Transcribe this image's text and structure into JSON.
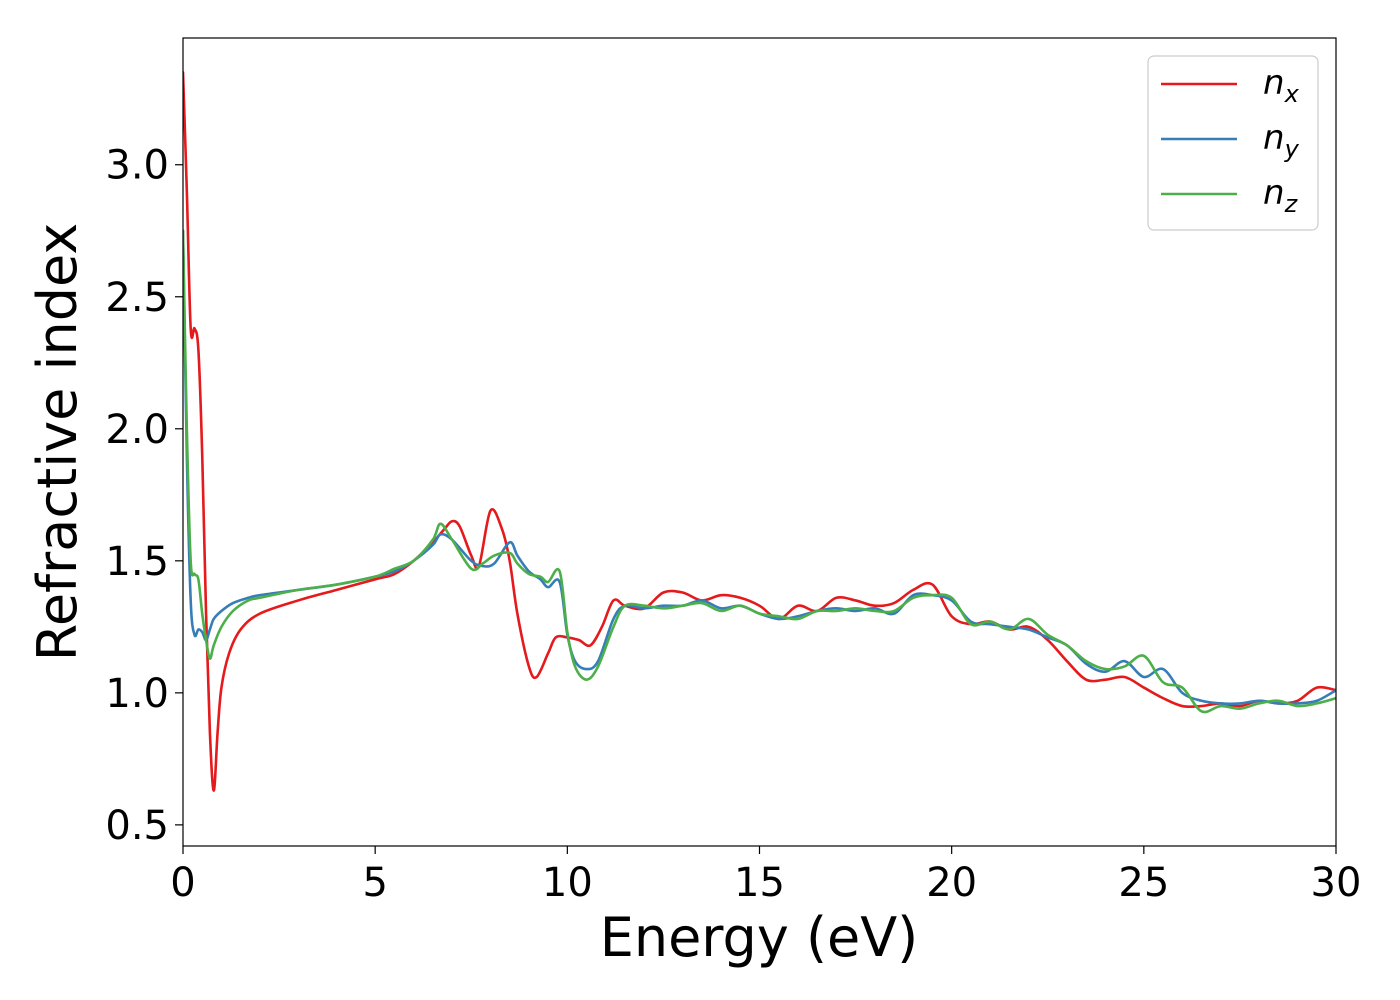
{
  "chart_data": {
    "type": "line",
    "title": "",
    "xlabel": "Energy (eV)",
    "ylabel": "Refractive index",
    "xlim": [
      0,
      30
    ],
    "ylim": [
      0.42,
      3.48
    ],
    "xticks": [
      0,
      5,
      10,
      15,
      20,
      25,
      30
    ],
    "xtick_labels": [
      "0",
      "5",
      "10",
      "15",
      "20",
      "25",
      "30"
    ],
    "yticks": [
      0.5,
      1.0,
      1.5,
      2.0,
      2.5,
      3.0
    ],
    "ytick_labels": [
      "0.5",
      "1.0",
      "1.5",
      "2.0",
      "2.5",
      "3.0"
    ],
    "grid": false,
    "legend_position": "top-right",
    "series": [
      {
        "name": "n_x",
        "label_base": "n",
        "label_sub": "x",
        "color": "#e41a1c",
        "x": [
          0,
          0.1,
          0.2,
          0.3,
          0.4,
          0.5,
          0.6,
          0.7,
          0.8,
          0.9,
          1.0,
          1.2,
          1.5,
          2,
          3,
          4,
          5,
          5.5,
          6,
          6.5,
          6.8,
          7.0,
          7.2,
          7.5,
          7.7,
          8.0,
          8.3,
          8.5,
          8.7,
          9.0,
          9.2,
          9.5,
          9.7,
          10.0,
          10.3,
          10.6,
          10.9,
          11.2,
          11.5,
          12,
          12.5,
          13,
          13.5,
          14,
          14.5,
          15,
          15.5,
          16,
          16.5,
          17,
          17.5,
          18,
          18.5,
          19,
          19.5,
          20,
          20.5,
          21,
          21.5,
          22,
          22.5,
          23,
          23.5,
          24,
          24.5,
          25,
          25.5,
          26,
          26.5,
          27,
          27.5,
          28,
          28.5,
          29,
          29.5,
          30
        ],
        "y": [
          3.35,
          2.9,
          2.38,
          2.38,
          2.3,
          1.9,
          1.3,
          0.85,
          0.63,
          0.85,
          1.02,
          1.15,
          1.24,
          1.3,
          1.35,
          1.39,
          1.43,
          1.45,
          1.5,
          1.57,
          1.62,
          1.65,
          1.63,
          1.52,
          1.48,
          1.69,
          1.62,
          1.5,
          1.3,
          1.1,
          1.06,
          1.15,
          1.21,
          1.21,
          1.2,
          1.18,
          1.25,
          1.35,
          1.33,
          1.32,
          1.38,
          1.38,
          1.35,
          1.37,
          1.36,
          1.33,
          1.28,
          1.33,
          1.31,
          1.36,
          1.35,
          1.33,
          1.34,
          1.39,
          1.41,
          1.29,
          1.26,
          1.27,
          1.24,
          1.25,
          1.2,
          1.12,
          1.05,
          1.05,
          1.06,
          1.02,
          0.98,
          0.95,
          0.95,
          0.96,
          0.95,
          0.97,
          0.96,
          0.97,
          1.02,
          1.01
        ]
      },
      {
        "name": "n_y",
        "label_base": "n",
        "label_sub": "y",
        "color": "#377eb8",
        "x": [
          0,
          0.1,
          0.2,
          0.3,
          0.4,
          0.5,
          0.6,
          0.7,
          0.8,
          1.0,
          1.3,
          1.7,
          2,
          3,
          4,
          5,
          5.5,
          6,
          6.5,
          6.7,
          7.0,
          7.5,
          7.8,
          8.1,
          8.5,
          8.7,
          9.0,
          9.3,
          9.5,
          9.8,
          10.0,
          10.2,
          10.5,
          10.8,
          11.2,
          11.5,
          12,
          12.5,
          13,
          13.5,
          14,
          14.5,
          15,
          15.5,
          16,
          16.5,
          17,
          17.5,
          18,
          18.5,
          19,
          19.5,
          20,
          20.5,
          21,
          21.5,
          22,
          22.5,
          23,
          23.5,
          24,
          24.5,
          25,
          25.5,
          26,
          26.5,
          27,
          27.5,
          28,
          28.5,
          29,
          29.5,
          30
        ],
        "y": [
          2.75,
          1.9,
          1.35,
          1.22,
          1.24,
          1.23,
          1.2,
          1.24,
          1.28,
          1.31,
          1.34,
          1.36,
          1.37,
          1.39,
          1.41,
          1.44,
          1.46,
          1.5,
          1.56,
          1.6,
          1.58,
          1.5,
          1.48,
          1.49,
          1.57,
          1.52,
          1.46,
          1.43,
          1.4,
          1.42,
          1.22,
          1.12,
          1.09,
          1.12,
          1.28,
          1.33,
          1.32,
          1.33,
          1.33,
          1.35,
          1.32,
          1.33,
          1.3,
          1.28,
          1.29,
          1.31,
          1.32,
          1.31,
          1.32,
          1.3,
          1.37,
          1.37,
          1.35,
          1.27,
          1.26,
          1.25,
          1.24,
          1.21,
          1.18,
          1.11,
          1.08,
          1.12,
          1.06,
          1.09,
          1.0,
          0.97,
          0.96,
          0.96,
          0.97,
          0.96,
          0.96,
          0.97,
          1.01
        ]
      },
      {
        "name": "n_z",
        "label_base": "n",
        "label_sub": "z",
        "color": "#4daf4a",
        "x": [
          0,
          0.1,
          0.2,
          0.3,
          0.4,
          0.5,
          0.6,
          0.7,
          0.8,
          1.0,
          1.3,
          1.7,
          2,
          3,
          4,
          5,
          5.5,
          6,
          6.5,
          6.7,
          7.0,
          7.5,
          7.8,
          8.1,
          8.5,
          8.7,
          9.0,
          9.3,
          9.5,
          9.8,
          10.0,
          10.2,
          10.5,
          10.8,
          11.2,
          11.5,
          12,
          12.5,
          13,
          13.5,
          14,
          14.5,
          15,
          15.5,
          16,
          16.5,
          17,
          17.5,
          18,
          18.5,
          19,
          19.5,
          20,
          20.5,
          21,
          21.5,
          22,
          22.5,
          23,
          23.5,
          24,
          24.5,
          25,
          25.5,
          26,
          26.5,
          27,
          27.5,
          28,
          28.5,
          29,
          29.5,
          30
        ],
        "y": [
          2.75,
          2.0,
          1.5,
          1.45,
          1.43,
          1.3,
          1.2,
          1.13,
          1.18,
          1.25,
          1.31,
          1.35,
          1.36,
          1.39,
          1.41,
          1.44,
          1.47,
          1.5,
          1.58,
          1.64,
          1.58,
          1.47,
          1.49,
          1.52,
          1.53,
          1.49,
          1.45,
          1.44,
          1.42,
          1.46,
          1.23,
          1.1,
          1.05,
          1.1,
          1.25,
          1.33,
          1.33,
          1.32,
          1.33,
          1.34,
          1.31,
          1.33,
          1.3,
          1.29,
          1.28,
          1.31,
          1.31,
          1.32,
          1.31,
          1.31,
          1.36,
          1.37,
          1.36,
          1.26,
          1.27,
          1.24,
          1.28,
          1.22,
          1.18,
          1.12,
          1.09,
          1.1,
          1.14,
          1.04,
          1.02,
          0.93,
          0.95,
          0.94,
          0.96,
          0.97,
          0.95,
          0.96,
          0.98
        ]
      }
    ]
  }
}
